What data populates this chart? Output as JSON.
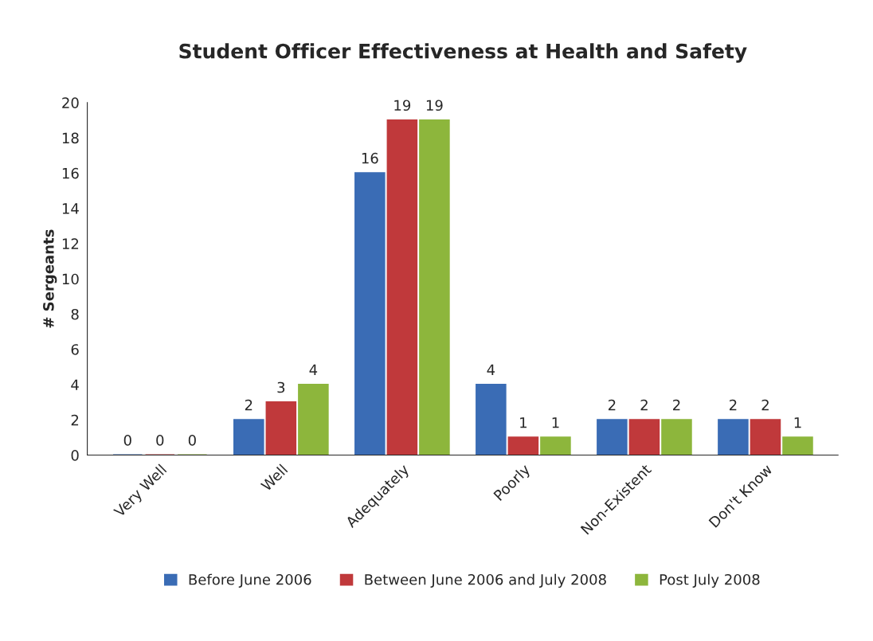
{
  "chart_data": {
    "type": "bar",
    "title": "Student Officer Effectiveness at Health and Safety",
    "ylabel": "# Sergeants",
    "categories": [
      "Very Well",
      "Well",
      "Adequately",
      "Poorly",
      "Non-Existent",
      "Don't Know"
    ],
    "series": [
      {
        "name": "Before June 2006",
        "color": "#3a6cb5",
        "values": [
          0,
          2,
          16,
          4,
          2,
          2
        ]
      },
      {
        "name": "Between June 2006 and July 2008",
        "color": "#c0393b",
        "values": [
          0,
          3,
          19,
          1,
          2,
          2
        ]
      },
      {
        "name": "Post July 2008",
        "color": "#8db63c",
        "values": [
          0,
          4,
          19,
          1,
          2,
          1
        ]
      }
    ],
    "ylim": [
      0,
      20
    ],
    "yticks": [
      0,
      2,
      4,
      6,
      8,
      10,
      12,
      14,
      16,
      18,
      20
    ],
    "grid": false,
    "legend": "bottom",
    "data_labels": true
  }
}
